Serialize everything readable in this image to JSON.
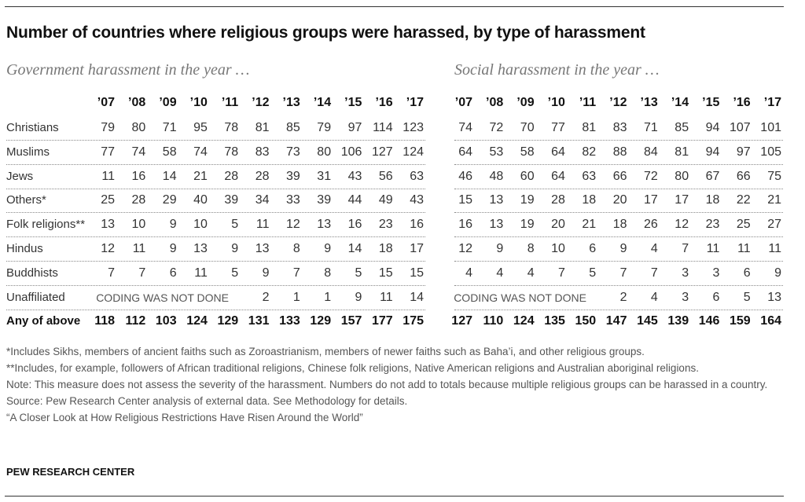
{
  "title": "Number of countries where religious groups were harassed, by type of harassment",
  "table": {
    "row_labels": [
      "Christians",
      "Muslims",
      "Jews",
      "Others*",
      "Folk religions**",
      "Hindus",
      "Buddhists",
      "Unaffiliated",
      "Any of above"
    ],
    "panels": [
      {
        "subtitle": "Government harassment in the year …",
        "years": [
          "’07",
          "’08",
          "’09",
          "’10",
          "’11",
          "’12",
          "’13",
          "’14",
          "’15",
          "’16",
          "’17"
        ],
        "rows": [
          [
            79,
            80,
            71,
            95,
            78,
            81,
            85,
            79,
            97,
            114,
            123
          ],
          [
            77,
            74,
            58,
            74,
            78,
            83,
            73,
            80,
            106,
            127,
            124
          ],
          [
            11,
            16,
            14,
            21,
            28,
            28,
            39,
            31,
            43,
            56,
            63
          ],
          [
            25,
            28,
            29,
            40,
            39,
            34,
            33,
            39,
            44,
            49,
            43
          ],
          [
            13,
            10,
            9,
            10,
            5,
            11,
            12,
            13,
            16,
            23,
            16
          ],
          [
            12,
            11,
            9,
            13,
            9,
            13,
            8,
            9,
            14,
            18,
            17
          ],
          [
            7,
            7,
            6,
            11,
            5,
            9,
            7,
            8,
            5,
            15,
            15
          ],
          [
            "CODING WAS NOT DONE",
            2,
            1,
            1,
            9,
            11,
            14
          ],
          [
            118,
            112,
            103,
            124,
            129,
            131,
            133,
            129,
            157,
            177,
            175
          ]
        ]
      },
      {
        "subtitle": "Social harassment in the year …",
        "years": [
          "’07",
          "’08",
          "’09",
          "’10",
          "’11",
          "’12",
          "’13",
          "’14",
          "’15",
          "’16",
          "’17"
        ],
        "rows": [
          [
            74,
            72,
            70,
            77,
            81,
            83,
            71,
            85,
            94,
            107,
            101
          ],
          [
            64,
            53,
            58,
            64,
            82,
            88,
            84,
            81,
            94,
            97,
            105
          ],
          [
            46,
            48,
            60,
            64,
            63,
            66,
            72,
            80,
            67,
            66,
            75
          ],
          [
            15,
            13,
            19,
            28,
            18,
            20,
            17,
            17,
            18,
            22,
            21
          ],
          [
            16,
            13,
            19,
            20,
            21,
            18,
            26,
            12,
            23,
            25,
            27
          ],
          [
            12,
            9,
            8,
            10,
            6,
            9,
            4,
            7,
            11,
            11,
            11
          ],
          [
            4,
            4,
            4,
            7,
            5,
            7,
            7,
            3,
            3,
            6,
            9
          ],
          [
            "CODING WAS NOT DONE",
            2,
            4,
            3,
            6,
            5,
            13
          ],
          [
            127,
            110,
            124,
            135,
            150,
            147,
            145,
            139,
            146,
            159,
            164
          ]
        ]
      }
    ]
  },
  "footnotes": [
    "*Includes Sikhs, members of ancient faiths such as Zoroastrianism, members of newer faiths such as Baha’i, and other religious groups.",
    "**Includes, for example, followers of African traditional religions, Chinese folk religions, Native American religions and Australian aboriginal religions.",
    "Note: This measure does not assess the severity of the harassment. Numbers do not add to totals because multiple religious groups can be harassed in a country.",
    "Source: Pew Research Center analysis of external data. See Methodology for details.",
    "“A Closer Look at How Religious Restrictions Have Risen Around the World”"
  ],
  "source": "PEW RESEARCH CENTER"
}
